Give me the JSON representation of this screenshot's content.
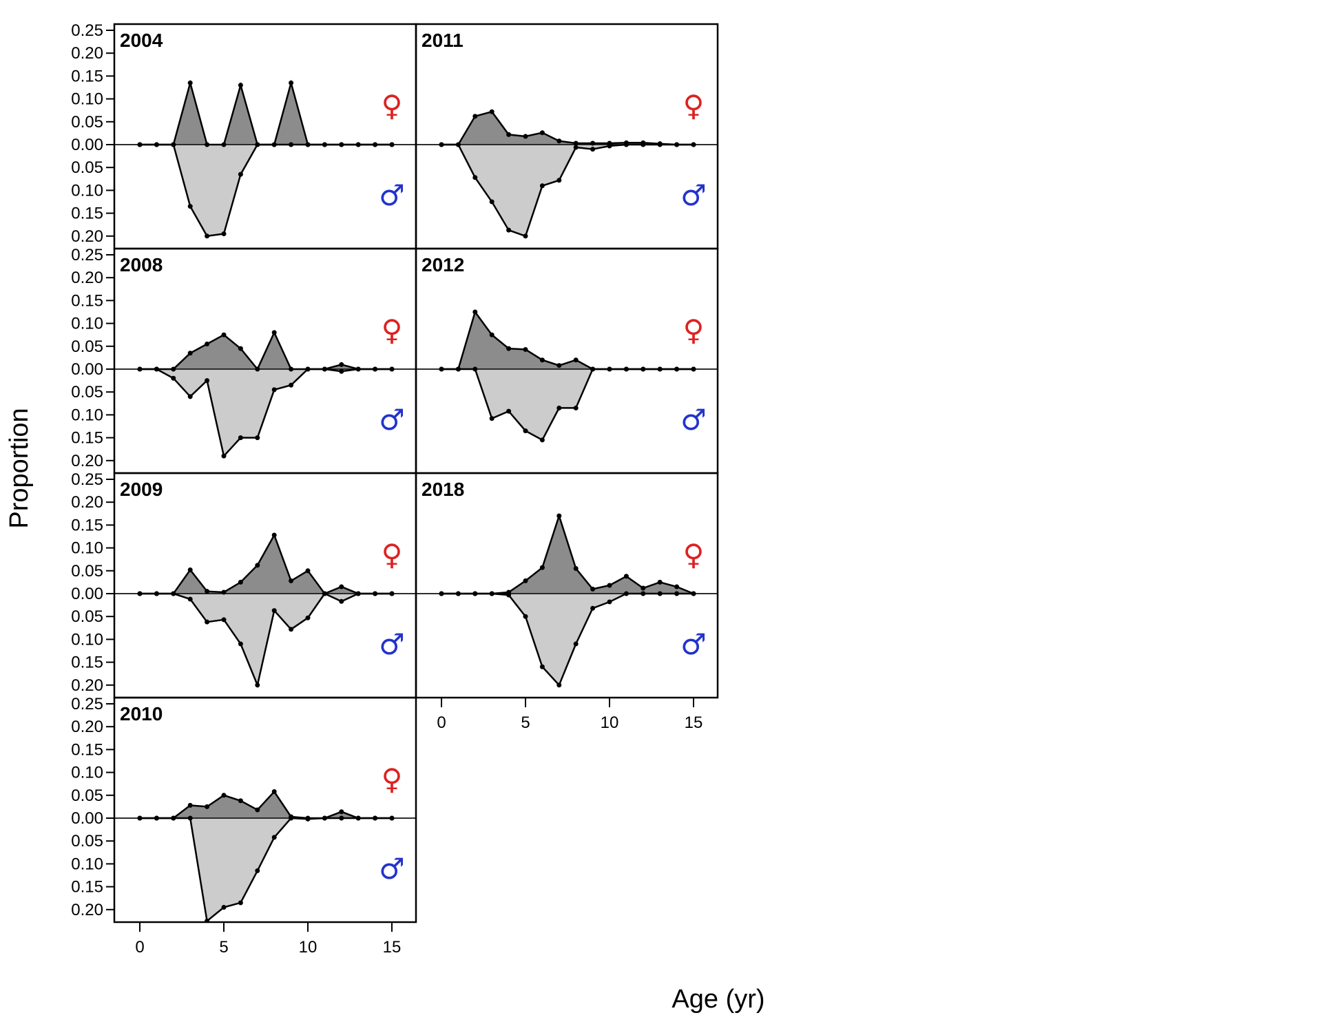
{
  "chart_data": {
    "type": "area",
    "xlabel": "Age (yr)",
    "ylabel": "Proportion",
    "xlim": [
      -1.5,
      16.5
    ],
    "ylim": [
      -0.225,
      0.255
    ],
    "x_ticks": [
      "0",
      "5",
      "10",
      "15"
    ],
    "y_ticks_upper": [
      "0.25",
      "0.20",
      "0.15",
      "0.10",
      "0.05",
      "0.00"
    ],
    "y_ticks_lower": [
      "0.05",
      "0.10",
      "0.15",
      "0.20"
    ],
    "female_symbol": "♀",
    "male_symbol": "♂",
    "colors": {
      "female_fill": "#8c8c8c",
      "male_fill": "#cccccc",
      "female_symbol": "#dd2222",
      "male_symbol": "#2233cc",
      "zero_line": "#bbbbbb"
    },
    "ages": [
      0,
      1,
      2,
      3,
      4,
      5,
      6,
      7,
      8,
      9,
      10,
      11,
      12,
      13,
      14,
      15
    ],
    "panels": [
      {
        "year": "2004",
        "col": 0,
        "row": 0,
        "female": [
          0,
          0,
          0,
          0.135,
          0,
          0,
          0.13,
          0,
          0,
          0.135,
          0,
          0,
          0,
          0,
          0,
          0
        ],
        "male": [
          0,
          0,
          0,
          0.135,
          0.2,
          0.195,
          0.065,
          0,
          0,
          0,
          0,
          0,
          0,
          0,
          0,
          0
        ]
      },
      {
        "year": "2008",
        "col": 0,
        "row": 1,
        "female": [
          0,
          0,
          0,
          0.035,
          0.055,
          0.075,
          0.045,
          0,
          0.08,
          0,
          0,
          0,
          0.01,
          0,
          0,
          0
        ],
        "male": [
          0,
          0,
          0.02,
          0.06,
          0.025,
          0.19,
          0.15,
          0.15,
          0.045,
          0.035,
          0,
          0,
          0.005,
          0,
          0,
          0
        ]
      },
      {
        "year": "2009",
        "col": 0,
        "row": 2,
        "female": [
          0,
          0,
          0,
          0.052,
          0.005,
          0.003,
          0.025,
          0.062,
          0.128,
          0.028,
          0.05,
          0,
          0.015,
          0,
          0,
          0
        ],
        "male": [
          0,
          0,
          0,
          0.012,
          0.062,
          0.057,
          0.11,
          0.2,
          0.037,
          0.078,
          0.053,
          0,
          0.017,
          0,
          0,
          0
        ]
      },
      {
        "year": "2010",
        "col": 0,
        "row": 3,
        "female": [
          0,
          0,
          0,
          0.028,
          0.025,
          0.05,
          0.038,
          0.018,
          0.058,
          0.003,
          0,
          0,
          0.014,
          0,
          0,
          0
        ],
        "male": [
          0,
          0,
          0,
          0,
          0.225,
          0.195,
          0.185,
          0.115,
          0.042,
          0,
          0.002,
          0,
          0,
          0,
          0,
          0
        ]
      },
      {
        "year": "2011",
        "col": 1,
        "row": 0,
        "female": [
          0,
          0,
          0.062,
          0.072,
          0.022,
          0.018,
          0.026,
          0.008,
          0.003,
          0.003,
          0.003,
          0.004,
          0.004,
          0.002,
          0,
          0
        ],
        "male": [
          0,
          0,
          0.072,
          0.125,
          0.187,
          0.2,
          0.09,
          0.078,
          0.006,
          0.01,
          0.003,
          0,
          0,
          0,
          0,
          0
        ]
      },
      {
        "year": "2012",
        "col": 1,
        "row": 1,
        "female": [
          0,
          0,
          0.125,
          0.075,
          0.045,
          0.043,
          0.02,
          0.008,
          0.02,
          0,
          0,
          0,
          0,
          0,
          0,
          0
        ],
        "male": [
          0,
          0,
          0,
          0.108,
          0.092,
          0.135,
          0.155,
          0.085,
          0.085,
          0,
          0,
          0,
          0,
          0,
          0,
          0
        ]
      },
      {
        "year": "2018",
        "col": 1,
        "row": 2,
        "female": [
          0,
          0,
          0,
          0,
          0.003,
          0.028,
          0.057,
          0.17,
          0.055,
          0.01,
          0.018,
          0.038,
          0.012,
          0.025,
          0.015,
          0
        ],
        "male": [
          0,
          0,
          0,
          0,
          0.003,
          0.05,
          0.16,
          0.2,
          0.11,
          0.032,
          0.018,
          0,
          0,
          0,
          0,
          0
        ]
      }
    ]
  }
}
